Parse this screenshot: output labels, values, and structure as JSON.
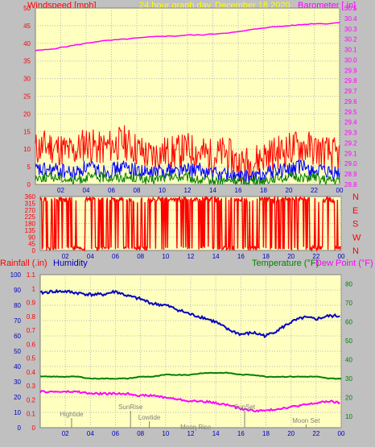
{
  "header": {
    "windspeed_label": "Windspeed [mph]",
    "graph_title": "24 hour graph day",
    "date": "December 18 2020",
    "barometer_label": "Barometer [.in]"
  },
  "lower_header": {
    "rainfall_label": "Rainfall (.in)",
    "humidity_label": "Humidity",
    "temperature_label": "Temperature (°F)",
    "dewpoint_label": "Dew Point (°F)"
  },
  "colors": {
    "wind_gust": "#ff0000",
    "wind_avg": "#0000ff",
    "wind_low": "#008000",
    "barometer": "#ff00ff",
    "humidity": "#0000c0",
    "temperature": "#008000",
    "dewpoint": "#ff00ff",
    "plot_bg": "#ffffc0",
    "frame": "#c0c0c0"
  },
  "chart_data": [
    {
      "type": "line",
      "name": "wind-barometer",
      "x_ticks": [
        "02",
        "04",
        "06",
        "08",
        "10",
        "12",
        "14",
        "16",
        "18",
        "20",
        "22",
        "00"
      ],
      "yleft": {
        "label": "Windspeed [mph]",
        "ticks": [
          0,
          5,
          10,
          15,
          20,
          25,
          30,
          35,
          40,
          45,
          50
        ],
        "range": [
          0,
          50
        ]
      },
      "yright": {
        "label": "Barometer [.in]",
        "ticks": [
          "28.8",
          "28.9",
          "29.0",
          "29.1",
          "29.2",
          "29.3",
          "29.4",
          "29.5",
          "29.6",
          "29.7",
          "29.8",
          "29.9",
          "30.0",
          "30.1",
          "30.2",
          "30.3",
          "30.4",
          "30.5"
        ],
        "range": [
          28.8,
          30.5
        ]
      },
      "series": [
        {
          "role": "barometer",
          "axis": "right",
          "x": [
            0,
            1,
            2,
            3,
            4,
            5,
            6,
            7,
            8,
            9,
            10,
            11,
            12,
            13,
            14,
            15,
            16,
            17,
            18,
            19,
            20,
            21,
            22,
            23,
            24
          ],
          "y": [
            30.09,
            30.1,
            30.12,
            30.14,
            30.16,
            30.18,
            30.19,
            30.2,
            30.21,
            30.22,
            30.23,
            30.23,
            30.24,
            30.24,
            30.25,
            30.26,
            30.27,
            30.29,
            30.31,
            30.32,
            30.33,
            30.34,
            30.35,
            30.35,
            30.36
          ]
        },
        {
          "role": "gust",
          "axis": "left",
          "x": [
            0,
            1,
            2,
            3,
            4,
            5,
            6,
            7,
            8,
            9,
            10,
            11,
            12,
            13,
            14,
            15,
            16,
            17,
            18,
            19,
            20,
            21,
            22,
            23,
            24
          ],
          "y": [
            10,
            11,
            10,
            9,
            12,
            10,
            11,
            12,
            10,
            8,
            9,
            9,
            10,
            9,
            8,
            9,
            6,
            6,
            8,
            9,
            10,
            11,
            10,
            9,
            8
          ]
        },
        {
          "role": "avg",
          "axis": "left",
          "x": [
            0,
            1,
            2,
            3,
            4,
            5,
            6,
            7,
            8,
            9,
            10,
            11,
            12,
            13,
            14,
            15,
            16,
            17,
            18,
            19,
            20,
            21,
            22,
            23,
            24
          ],
          "y": [
            4,
            4,
            4,
            3,
            5,
            4,
            4,
            5,
            4,
            3,
            4,
            4,
            4,
            4,
            3,
            3,
            2,
            2,
            3,
            4,
            4,
            5,
            4,
            3,
            3
          ]
        },
        {
          "role": "low",
          "axis": "left",
          "x": [
            0,
            1,
            2,
            3,
            4,
            5,
            6,
            7,
            8,
            9,
            10,
            11,
            12,
            13,
            14,
            15,
            16,
            17,
            18,
            19,
            20,
            21,
            22,
            23,
            24
          ],
          "y": [
            2,
            2,
            2,
            1,
            2,
            2,
            2,
            2,
            2,
            1,
            2,
            2,
            2,
            1,
            1,
            1,
            1,
            1,
            1,
            2,
            2,
            2,
            2,
            1,
            1
          ]
        }
      ]
    },
    {
      "type": "line",
      "name": "wind-direction",
      "x_ticks": [
        "02",
        "04",
        "06",
        "08",
        "10",
        "12",
        "14",
        "16",
        "18",
        "20",
        "22",
        "00"
      ],
      "yleft": {
        "ticks": [
          0,
          45,
          90,
          135,
          180,
          225,
          270,
          315,
          360
        ],
        "range": [
          0,
          360
        ]
      },
      "yright": {
        "ticks": [
          "N",
          "W",
          "S",
          "E",
          "N"
        ]
      },
      "series": [
        {
          "role": "direction",
          "axis": "left",
          "x": [
            0,
            1,
            2,
            3,
            4,
            5,
            6,
            7,
            8,
            9,
            10,
            11,
            12,
            13,
            14,
            15,
            16,
            17,
            18,
            19,
            20,
            21,
            22,
            23,
            24
          ],
          "y": [
            330,
            20,
            340,
            30,
            300,
            10,
            350,
            320,
            20,
            340,
            330,
            350,
            320,
            340,
            330,
            20,
            340,
            10,
            350,
            330,
            340,
            350,
            20,
            330,
            10
          ]
        }
      ]
    },
    {
      "type": "line",
      "name": "humidity-temperature",
      "x_ticks": [
        "02",
        "04",
        "06",
        "08",
        "10",
        "12",
        "14",
        "16",
        "18",
        "20",
        "22",
        "00"
      ],
      "yleft_rain": {
        "label": "Rainfall (.in)",
        "ticks": [
          "0",
          "0.1",
          "0.2",
          "0.3",
          "0.4",
          "0.5",
          "0.6",
          "0.7",
          "0.8",
          "0.9",
          "1",
          "1.1"
        ],
        "range": [
          0,
          1.1
        ]
      },
      "yleft_humidity": {
        "label": "Humidity",
        "ticks": [
          0,
          10,
          20,
          30,
          40,
          50,
          60,
          70,
          80,
          90,
          100
        ],
        "range": [
          0,
          100
        ]
      },
      "yright": {
        "label": "Temperature (°F)",
        "ticks": [
          10,
          20,
          30,
          40,
          50,
          60,
          70,
          80
        ],
        "range": [
          4,
          85
        ]
      },
      "series": [
        {
          "role": "humidity",
          "axis": "humidity",
          "x": [
            0,
            1,
            2,
            3,
            4,
            5,
            6,
            7,
            8,
            9,
            10,
            11,
            12,
            13,
            14,
            15,
            16,
            17,
            18,
            19,
            20,
            21,
            22,
            23,
            24
          ],
          "y": [
            88,
            89,
            89,
            88,
            87,
            87,
            89,
            86,
            84,
            81,
            80,
            77,
            74,
            72,
            69,
            64,
            61,
            62,
            60,
            64,
            69,
            72,
            71,
            73,
            73
          ]
        },
        {
          "role": "temperature",
          "axis": "right",
          "x": [
            0,
            1,
            2,
            3,
            4,
            5,
            6,
            7,
            8,
            9,
            10,
            11,
            12,
            13,
            14,
            15,
            16,
            17,
            18,
            19,
            20,
            21,
            22,
            23,
            24
          ],
          "y": [
            31,
            31,
            31,
            31,
            30,
            30,
            30,
            30,
            31,
            31,
            32,
            32,
            32,
            33,
            33,
            33,
            32,
            32,
            31,
            31,
            31,
            31,
            31,
            30,
            30
          ]
        },
        {
          "role": "dewpoint",
          "axis": "right",
          "x": [
            0,
            1,
            2,
            3,
            4,
            5,
            6,
            7,
            8,
            9,
            10,
            11,
            12,
            13,
            14,
            15,
            16,
            17,
            18,
            19,
            20,
            21,
            22,
            23,
            24
          ],
          "y": [
            23,
            23,
            23,
            23,
            22,
            22,
            22,
            22,
            21,
            21,
            20,
            19,
            18,
            18,
            17,
            16,
            14,
            13,
            13,
            14,
            15,
            16,
            17,
            18,
            17
          ]
        }
      ],
      "events": [
        {
          "label": "Hightide",
          "time": 2.5
        },
        {
          "label": "SunRise",
          "time": 7.2
        },
        {
          "label": "Lowtide",
          "time": 8.7
        },
        {
          "label": "Moon Rise",
          "time": 12.4
        },
        {
          "label": "SunSet",
          "time": 16.3
        },
        {
          "label": "Moon Set",
          "time": 21.2
        }
      ]
    }
  ]
}
